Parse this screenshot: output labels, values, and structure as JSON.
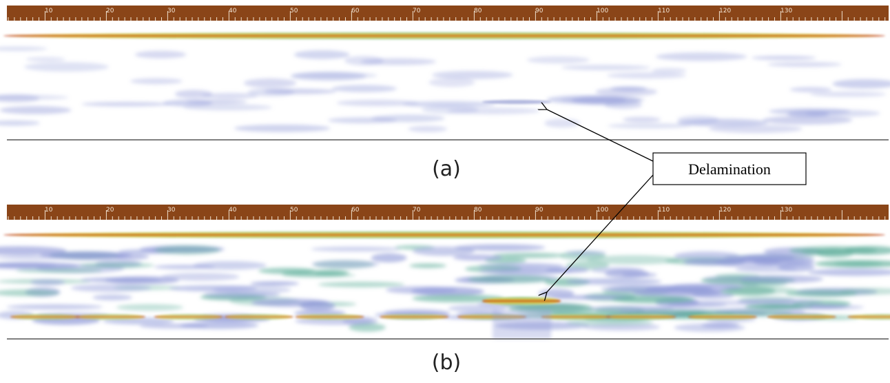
{
  "panels": [
    {
      "label": "(a)",
      "scale": [
        10,
        20,
        30,
        40,
        50,
        60,
        70,
        80,
        90,
        100,
        110,
        120,
        130
      ]
    },
    {
      "label": "(b)",
      "scale": [
        10,
        20,
        30,
        40,
        50,
        60,
        70,
        80,
        90,
        100,
        110,
        120,
        130
      ]
    }
  ],
  "annotation": "Delamination"
}
